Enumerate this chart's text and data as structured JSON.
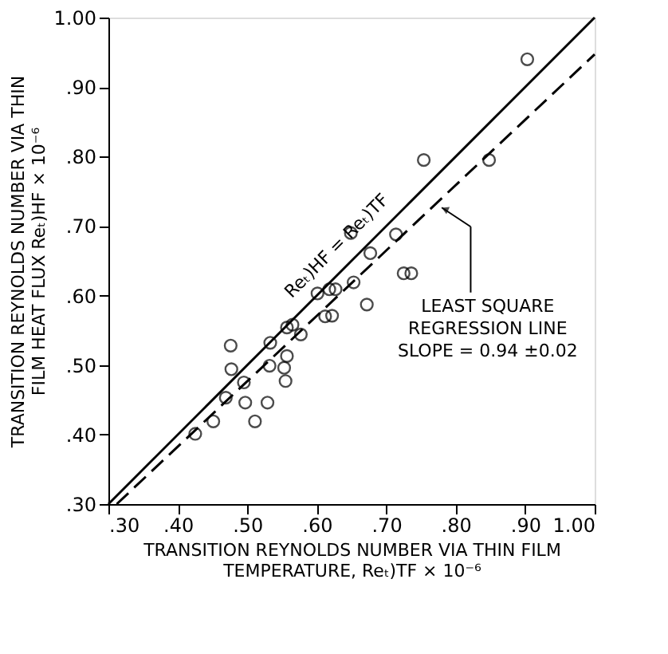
{
  "chart_data": {
    "type": "scatter",
    "xlabel": "TRANSITION REYNOLDS NUMBER VIA THIN FILM\nTEMPERATURE, Reₜ)TF × 10⁻⁶",
    "ylabel": "TRANSITION REYNOLDS NUMBER VIA THIN\nFILM HEAT FLUX  Reₜ)HF × 10⁻⁶",
    "xlim": [
      0.3,
      1.0
    ],
    "ylim": [
      0.3,
      1.0
    ],
    "xticks": [
      {
        "value": 0.3,
        "label": ".30"
      },
      {
        "value": 0.4,
        "label": ".40"
      },
      {
        "value": 0.5,
        "label": ".50"
      },
      {
        "value": 0.6,
        "label": ".60"
      },
      {
        "value": 0.7,
        "label": ".70"
      },
      {
        "value": 0.8,
        "label": ".80"
      },
      {
        "value": 0.9,
        "label": ".90"
      },
      {
        "value": 1.0,
        "label": "1.00"
      }
    ],
    "yticks": [
      {
        "value": 0.3,
        "label": ".30"
      },
      {
        "value": 0.4,
        "label": ".40"
      },
      {
        "value": 0.5,
        "label": ".50"
      },
      {
        "value": 0.6,
        "label": ".60"
      },
      {
        "value": 0.7,
        "label": ".70"
      },
      {
        "value": 0.8,
        "label": ".80"
      },
      {
        "value": 0.9,
        "label": ".90"
      },
      {
        "value": 1.0,
        "label": "1.00"
      }
    ],
    "grid": false,
    "series": [
      {
        "marker": "circle",
        "color": "#000000",
        "x": [
          0.425,
          0.451,
          0.469,
          0.476,
          0.477,
          0.495,
          0.497,
          0.511,
          0.529,
          0.533,
          0.532,
          0.555,
          0.553,
          0.557,
          0.557,
          0.565,
          0.577,
          0.601,
          0.612,
          0.622,
          0.618,
          0.627,
          0.653,
          0.672,
          0.725,
          0.736,
          0.649,
          0.677,
          0.714,
          0.754,
          0.848,
          0.903
        ],
        "values": [
          0.401,
          0.419,
          0.453,
          0.528,
          0.494,
          0.475,
          0.446,
          0.419,
          0.446,
          0.532,
          0.499,
          0.477,
          0.496,
          0.513,
          0.554,
          0.558,
          0.544,
          0.603,
          0.57,
          0.571,
          0.609,
          0.609,
          0.619,
          0.587,
          0.632,
          0.632,
          0.69,
          0.661,
          0.688,
          0.795,
          0.795,
          0.94
        ]
      },
      {
        "type": "line",
        "line_style": "solid",
        "color": "#000000",
        "x": [
          0.3,
          1.0
        ],
        "values": [
          0.3,
          1.0
        ]
      },
      {
        "type": "line",
        "line_style": "dashed",
        "color": "#000000",
        "x": [
          0.312,
          1.0
        ],
        "values": [
          0.3,
          0.947
        ]
      }
    ],
    "annotations": [
      "Reₜ)HF = Reₜ)TF",
      "LEAST SQUARE\nREGRESSION LINE\nSLOPE = 0.94 ±0.02"
    ]
  }
}
